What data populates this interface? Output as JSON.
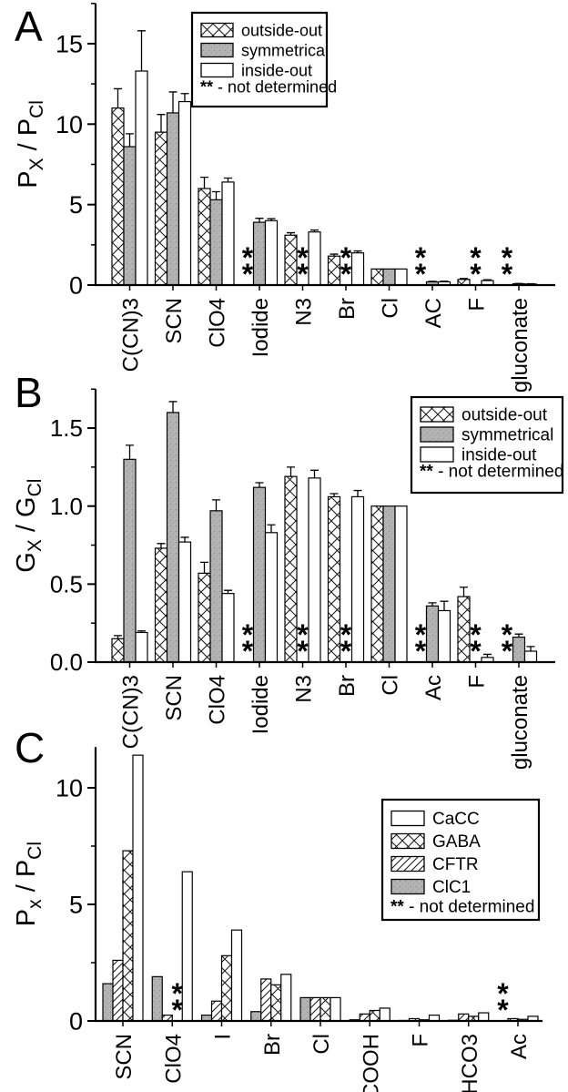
{
  "nd_note": {
    "symbol": "**",
    "text": " - not determined"
  },
  "colors": {
    "ink": "#000000",
    "gray_fill": "#b4b4b4",
    "white_fill": "#ffffff",
    "background": "#ffffff"
  },
  "chart_data": [
    {
      "type": "bar",
      "panel_label": "A",
      "ylabel": "P_X / P_Cl",
      "ylabel_rich": [
        {
          "t": "P"
        },
        {
          "t": "X",
          "sub": true
        },
        {
          "t": " / P"
        },
        {
          "t": "Cl",
          "sub": true
        }
      ],
      "categories": [
        "C(CN)3",
        "SCN",
        "ClO4",
        "Iodide",
        "N3",
        "Br",
        "Cl",
        "AC",
        "F",
        "gluconate"
      ],
      "series": [
        {
          "name": "outside-out",
          "fill": "crosshatch",
          "values": [
            11.0,
            9.5,
            6.0,
            null,
            3.1,
            1.8,
            1.0,
            null,
            0.35,
            null
          ],
          "errors": [
            1.2,
            1.1,
            0.7,
            null,
            0.15,
            0.12,
            null,
            null,
            0.06,
            null
          ]
        },
        {
          "name": "symmetrical",
          "fill": "gray",
          "values": [
            8.6,
            10.7,
            5.3,
            3.9,
            null,
            null,
            1.0,
            0.2,
            null,
            0.08
          ],
          "errors": [
            0.8,
            1.3,
            0.5,
            0.25,
            null,
            null,
            null,
            0.03,
            null,
            0.02
          ]
        },
        {
          "name": "inside-out",
          "fill": "white",
          "values": [
            13.3,
            11.4,
            6.4,
            4.0,
            3.3,
            2.0,
            1.0,
            0.2,
            0.28,
            0.06
          ],
          "errors": [
            2.5,
            0.5,
            0.25,
            0.12,
            0.12,
            0.12,
            null,
            0.04,
            0.05,
            0.02
          ]
        }
      ],
      "legend_order": [
        0,
        1,
        2
      ],
      "not_determined_marker": "**",
      "ylim": [
        0,
        17.5
      ],
      "yticks": [
        {
          "v": 0,
          "label": "0"
        },
        {
          "v": 5,
          "label": "5"
        },
        {
          "v": 10,
          "label": "10"
        },
        {
          "v": 15,
          "label": "15"
        }
      ],
      "minor_tick_step": 2.5,
      "grid": false,
      "legend_position": "top-center"
    },
    {
      "type": "bar",
      "panel_label": "B",
      "ylabel": "G_X / G_Cl",
      "ylabel_rich": [
        {
          "t": "G"
        },
        {
          "t": "X",
          "sub": true
        },
        {
          "t": " / G"
        },
        {
          "t": "Cl",
          "sub": true
        }
      ],
      "categories": [
        "C(CN)3",
        "SCN",
        "ClO4",
        "Iodide",
        "N3",
        "Br",
        "Cl",
        "Ac",
        "F",
        "gluconate"
      ],
      "series": [
        {
          "name": "outside-out",
          "fill": "crosshatch",
          "values": [
            0.15,
            0.73,
            0.57,
            null,
            1.19,
            1.06,
            1.0,
            null,
            0.42,
            null
          ],
          "errors": [
            0.02,
            0.03,
            0.07,
            null,
            0.06,
            0.02,
            null,
            null,
            0.06,
            null
          ]
        },
        {
          "name": "symmetrical",
          "fill": "gray",
          "values": [
            1.3,
            1.6,
            0.97,
            1.12,
            null,
            null,
            1.0,
            0.36,
            null,
            0.16
          ],
          "errors": [
            0.09,
            0.07,
            0.07,
            0.03,
            null,
            null,
            null,
            0.02,
            null,
            0.02
          ]
        },
        {
          "name": "inside-out",
          "fill": "white",
          "values": [
            0.19,
            0.77,
            0.44,
            0.83,
            1.18,
            1.06,
            1.0,
            0.33,
            0.03,
            0.07
          ],
          "errors": [
            0.01,
            0.03,
            0.02,
            0.05,
            0.05,
            0.04,
            null,
            0.06,
            0.02,
            0.03
          ]
        }
      ],
      "legend_order": [
        0,
        1,
        2
      ],
      "not_determined_marker": "**",
      "ylim": [
        0,
        1.75
      ],
      "yticks": [
        {
          "v": 0,
          "label": "0.0"
        },
        {
          "v": 0.5,
          "label": "0.5"
        },
        {
          "v": 1.0,
          "label": "1.0"
        },
        {
          "v": 1.5,
          "label": "1.5"
        }
      ],
      "minor_tick_step": 0.25,
      "grid": false,
      "legend_position": "top-right"
    },
    {
      "type": "bar",
      "panel_label": "C",
      "ylabel": "P_x / P_Cl",
      "ylabel_rich": [
        {
          "t": "P"
        },
        {
          "t": "x",
          "sub": true
        },
        {
          "t": " / P"
        },
        {
          "t": "Cl",
          "sub": true
        }
      ],
      "categories": [
        "SCN",
        "ClO4",
        "I",
        "Br",
        "Cl",
        "COOH",
        "F",
        "HCO3",
        "Ac"
      ],
      "series": [
        {
          "name": "ClC1",
          "fill": "gray",
          "values": [
            1.6,
            1.9,
            0.25,
            0.4,
            1.0,
            0.05,
            0.02,
            0.03,
            null
          ],
          "errors": [
            null,
            null,
            null,
            null,
            null,
            null,
            null,
            null,
            null
          ]
        },
        {
          "name": "CFTR",
          "fill": "diagonal",
          "values": [
            2.6,
            0.25,
            0.85,
            1.8,
            1.0,
            0.3,
            0.1,
            0.3,
            0.1
          ],
          "errors": [
            null,
            null,
            null,
            null,
            null,
            null,
            null,
            null,
            null
          ]
        },
        {
          "name": "GABA",
          "fill": "crosshatch",
          "values": [
            7.3,
            null,
            2.8,
            1.55,
            1.0,
            0.45,
            0.05,
            0.2,
            0.07
          ],
          "errors": [
            null,
            null,
            null,
            null,
            null,
            null,
            null,
            null,
            null
          ]
        },
        {
          "name": "CaCC",
          "fill": "white",
          "values": [
            11.4,
            6.4,
            3.9,
            2.0,
            1.0,
            0.55,
            0.25,
            0.35,
            0.2
          ],
          "errors": [
            null,
            null,
            null,
            null,
            null,
            null,
            null,
            null,
            null
          ]
        }
      ],
      "legend_order": [
        3,
        2,
        1,
        0
      ],
      "not_determined_marker": "**",
      "ylim": [
        0,
        11.75
      ],
      "yticks": [
        {
          "v": 0,
          "label": "0"
        },
        {
          "v": 5,
          "label": "5"
        },
        {
          "v": 10,
          "label": "10"
        }
      ],
      "minor_tick_step": 2.5,
      "grid": false,
      "legend_position": "right"
    }
  ]
}
